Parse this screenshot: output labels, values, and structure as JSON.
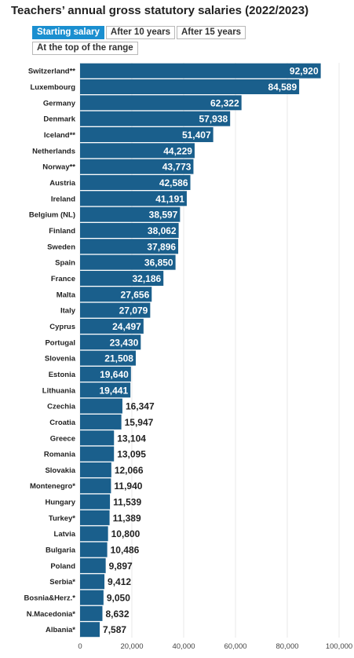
{
  "title": "Teachers’ annual gross statutory salaries (2022/2023)",
  "tabs": [
    {
      "label": "Starting salary",
      "active": true
    },
    {
      "label": "After 10 years",
      "active": false
    },
    {
      "label": "After 15 years",
      "active": false
    },
    {
      "label": "At the top of the range",
      "active": false
    }
  ],
  "colors": {
    "bar": "#1a5f8c",
    "active_tab": "#1a8fd0",
    "grid": "#e8e8e8"
  },
  "chart_data": {
    "type": "bar",
    "orientation": "horizontal",
    "title": "Teachers’ annual gross statutory salaries (2022/2023)",
    "categories": [
      "Switzerland**",
      "Luxembourg",
      "Germany",
      "Denmark",
      "Iceland**",
      "Netherlands",
      "Norway**",
      "Austria",
      "Ireland",
      "Belgium (NL)",
      "Finland",
      "Sweden",
      "Spain",
      "France",
      "Malta",
      "Italy",
      "Cyprus",
      "Portugal",
      "Slovenia",
      "Estonia",
      "Lithuania",
      "Czechia",
      "Croatia",
      "Greece",
      "Romania",
      "Slovakia",
      "Montenegro*",
      "Hungary",
      "Turkey*",
      "Latvia",
      "Bulgaria",
      "Poland",
      "Serbia*",
      "Bosnia&Herz.*",
      "N.Macedonia*",
      "Albania*"
    ],
    "values": [
      92920,
      84589,
      62322,
      57938,
      51407,
      44229,
      43773,
      42586,
      41191,
      38597,
      38062,
      37896,
      36850,
      32186,
      27656,
      27079,
      24497,
      23430,
      21508,
      19640,
      19441,
      16347,
      15947,
      13104,
      13095,
      12066,
      11940,
      11539,
      11389,
      10800,
      10486,
      9897,
      9412,
      9050,
      8632,
      7587
    ],
    "value_labels": [
      "92,920",
      "84,589",
      "62,322",
      "57,938",
      "51,407",
      "44,229",
      "43,773",
      "42,586",
      "41,191",
      "38,597",
      "38,062",
      "37,896",
      "36,850",
      "32,186",
      "27,656",
      "27,079",
      "24,497",
      "23,430",
      "21,508",
      "19,640",
      "19,441",
      "16,347",
      "15,947",
      "13,104",
      "13,095",
      "12,066",
      "11,940",
      "11,539",
      "11,389",
      "10,800",
      "10,486",
      "9,897",
      "9,412",
      "9,050",
      "8,632",
      "7,587"
    ],
    "x_ticks": [
      0,
      20000,
      40000,
      60000,
      80000,
      100000
    ],
    "x_tick_labels": [
      "0",
      "20,000",
      "40,000",
      "60,000",
      "80,000",
      "100,000"
    ],
    "xlim": [
      0,
      100000
    ],
    "grid": true
  }
}
